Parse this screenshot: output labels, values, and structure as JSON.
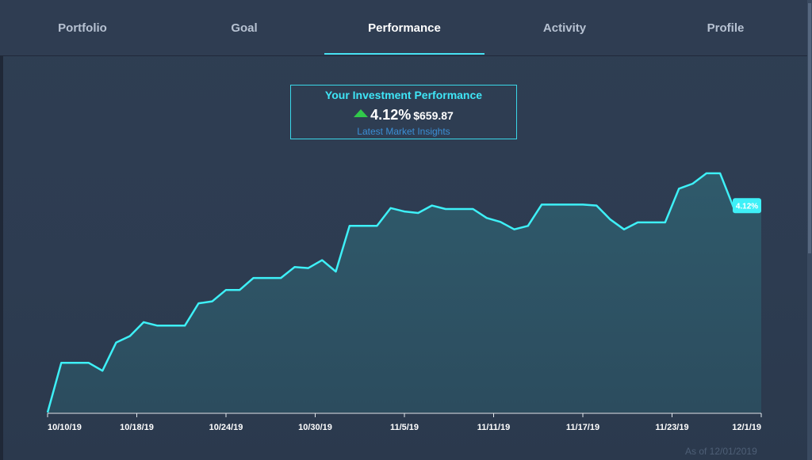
{
  "nav": {
    "tabs": [
      {
        "label": "Portfolio"
      },
      {
        "label": "Goal"
      },
      {
        "label": "Performance"
      },
      {
        "label": "Activity"
      },
      {
        "label": "Profile"
      }
    ],
    "active_tab": "Performance"
  },
  "summary": {
    "title": "Your Investment Performance",
    "return_pct": "4.12%",
    "return_amount": "$659.87",
    "insights_link": "Latest Market Insights",
    "trend": "up",
    "trend_icon": "triangle-up-icon"
  },
  "colors": {
    "line": "#3ef0f7",
    "area_fill": "#2e5566",
    "up": "#31c94a",
    "accent": "#46e0f0"
  },
  "as_of": "As of 12/01/2019",
  "chart_data": {
    "type": "area",
    "title": "",
    "xlabel": "",
    "ylabel": "",
    "x_ticks": [
      "10/10/19",
      "10/18/19",
      "10/24/19",
      "10/30/19",
      "11/5/19",
      "11/11/19",
      "11/17/19",
      "11/23/19",
      "12/1/19"
    ],
    "x_range": [
      0,
      52
    ],
    "y_range": [
      0,
      4.85
    ],
    "grid": false,
    "last_label": "4.12%",
    "series": [
      {
        "values": [
          0.0,
          1.0,
          1.0,
          1.0,
          0.84,
          1.41,
          1.54,
          1.82,
          1.75,
          1.75,
          1.75,
          2.2,
          2.24,
          2.47,
          2.47,
          2.71,
          2.71,
          2.71,
          2.93,
          2.91,
          3.07,
          2.84,
          3.76,
          3.76,
          3.76,
          4.12,
          4.05,
          4.02,
          4.17,
          4.1,
          4.1,
          4.1,
          3.92,
          3.84,
          3.69,
          3.76,
          4.19,
          4.19,
          4.19,
          4.19,
          4.17,
          3.89,
          3.69,
          3.83,
          3.83,
          3.83,
          4.51,
          4.61,
          4.82,
          4.82,
          4.12,
          4.12,
          4.12
        ]
      }
    ]
  }
}
